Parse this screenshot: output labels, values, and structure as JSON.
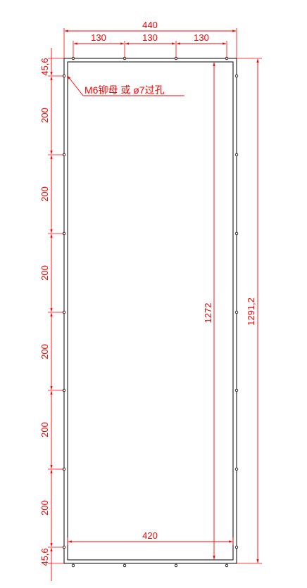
{
  "diagram": {
    "colors": {
      "dimension": "#ff0000",
      "outline": "#000000",
      "background": "#ffffff"
    },
    "labels": {
      "overall_width": "440",
      "hole_pitch_1": "130",
      "hole_pitch_2": "130",
      "hole_pitch_3": "130",
      "edge_offset_top": "45,6",
      "edge_offset_bottom": "45,6",
      "vertical_pitch": [
        "200",
        "200",
        "200",
        "200",
        "200",
        "200"
      ],
      "inner_height": "1272",
      "overall_height": "1291,2",
      "inner_width": "420",
      "hole_note": "M6铆母 或 ø7过孔"
    }
  }
}
